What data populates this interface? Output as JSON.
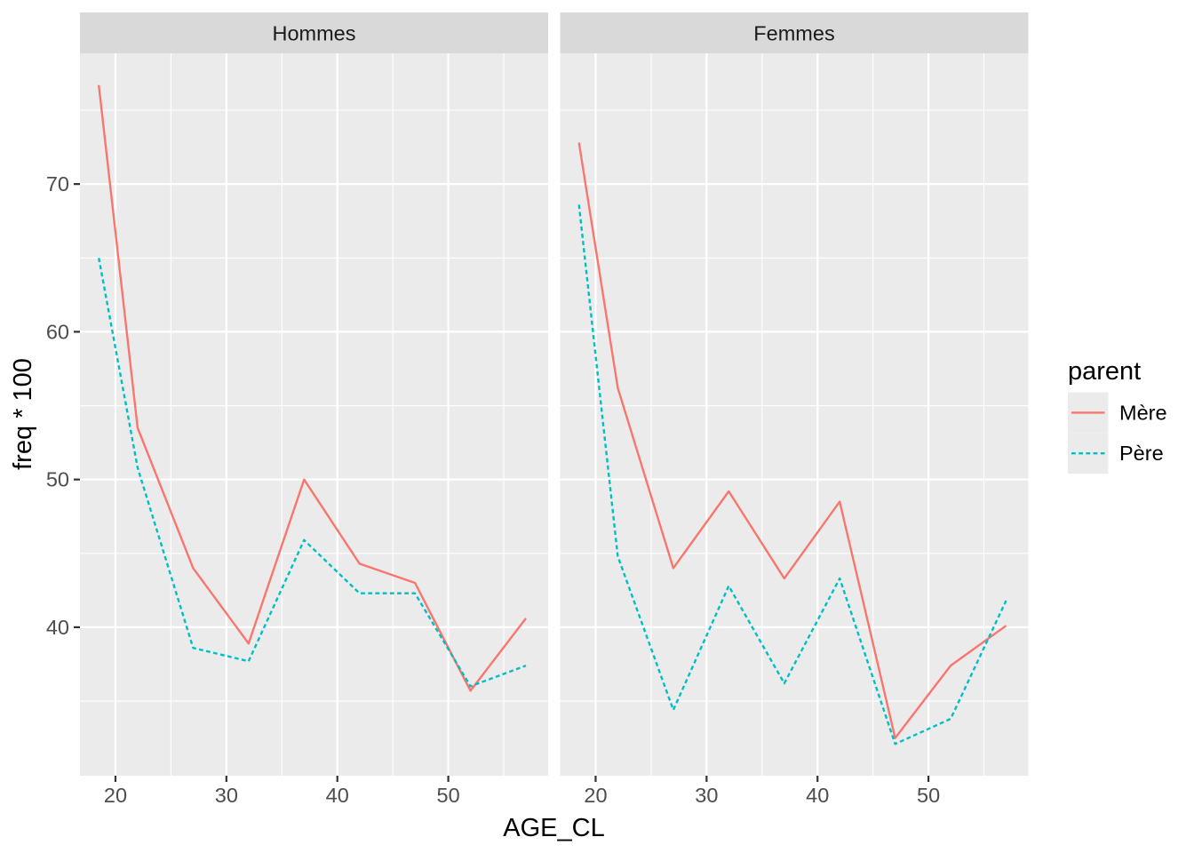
{
  "style": {
    "background": "#FFFFFF",
    "panel_bg": "#EBEBEB",
    "strip_bg": "#D9D9D9",
    "grid_color": "#FFFFFF",
    "tick_mark_color": "#333333",
    "tick_label_color": "#4D4D4D",
    "strip_text_color": "#1A1A1A",
    "axis_title_color": "#000000",
    "legend_key_bg": "#EBEBEB",
    "mere_color": "#F8766D",
    "pere_color": "#00BFC4"
  },
  "chart_data": {
    "type": "line",
    "xlabel": "AGE_CL",
    "ylabel": "freq * 100",
    "grid": true,
    "legend_position": "right",
    "x": [
      18.5,
      22,
      27,
      32,
      37,
      42,
      47,
      52,
      57
    ],
    "x_ticks": [
      20,
      30,
      40,
      50
    ],
    "x_minor_ticks": [
      25,
      35,
      45,
      55
    ],
    "y_ticks": [
      40,
      50,
      60,
      70
    ],
    "y_minor_ticks": [
      35,
      45,
      55,
      65,
      75
    ],
    "x_range": [
      16.8,
      59.0
    ],
    "y_range": [
      29.95,
      78.85
    ],
    "facets": [
      {
        "title": "Hommes",
        "series": [
          {
            "name": "Mère",
            "color": "#F8766D",
            "linetype": "solid",
            "values": [
              76.7,
              53.5,
              44.0,
              38.9,
              50.0,
              44.3,
              43.0,
              35.7,
              40.6
            ]
          },
          {
            "name": "Père",
            "color": "#00BFC4",
            "linetype": "dashed",
            "values": [
              65.0,
              50.8,
              38.6,
              37.7,
              45.9,
              42.3,
              42.3,
              36.0,
              37.4
            ]
          }
        ]
      },
      {
        "title": "Femmes",
        "series": [
          {
            "name": "Mère",
            "color": "#F8766D",
            "linetype": "solid",
            "values": [
              72.8,
              56.2,
              44.0,
              49.2,
              43.3,
              48.5,
              32.5,
              37.4,
              40.1
            ]
          },
          {
            "name": "Père",
            "color": "#00BFC4",
            "linetype": "dashed",
            "values": [
              68.6,
              44.8,
              34.4,
              42.8,
              36.2,
              43.3,
              32.1,
              33.8,
              41.8
            ]
          }
        ]
      }
    ],
    "legend": {
      "title": "parent",
      "entries": [
        {
          "label": "Mère",
          "color": "#F8766D",
          "linetype": "solid"
        },
        {
          "label": "Père",
          "color": "#00BFC4",
          "linetype": "dashed"
        }
      ]
    }
  }
}
